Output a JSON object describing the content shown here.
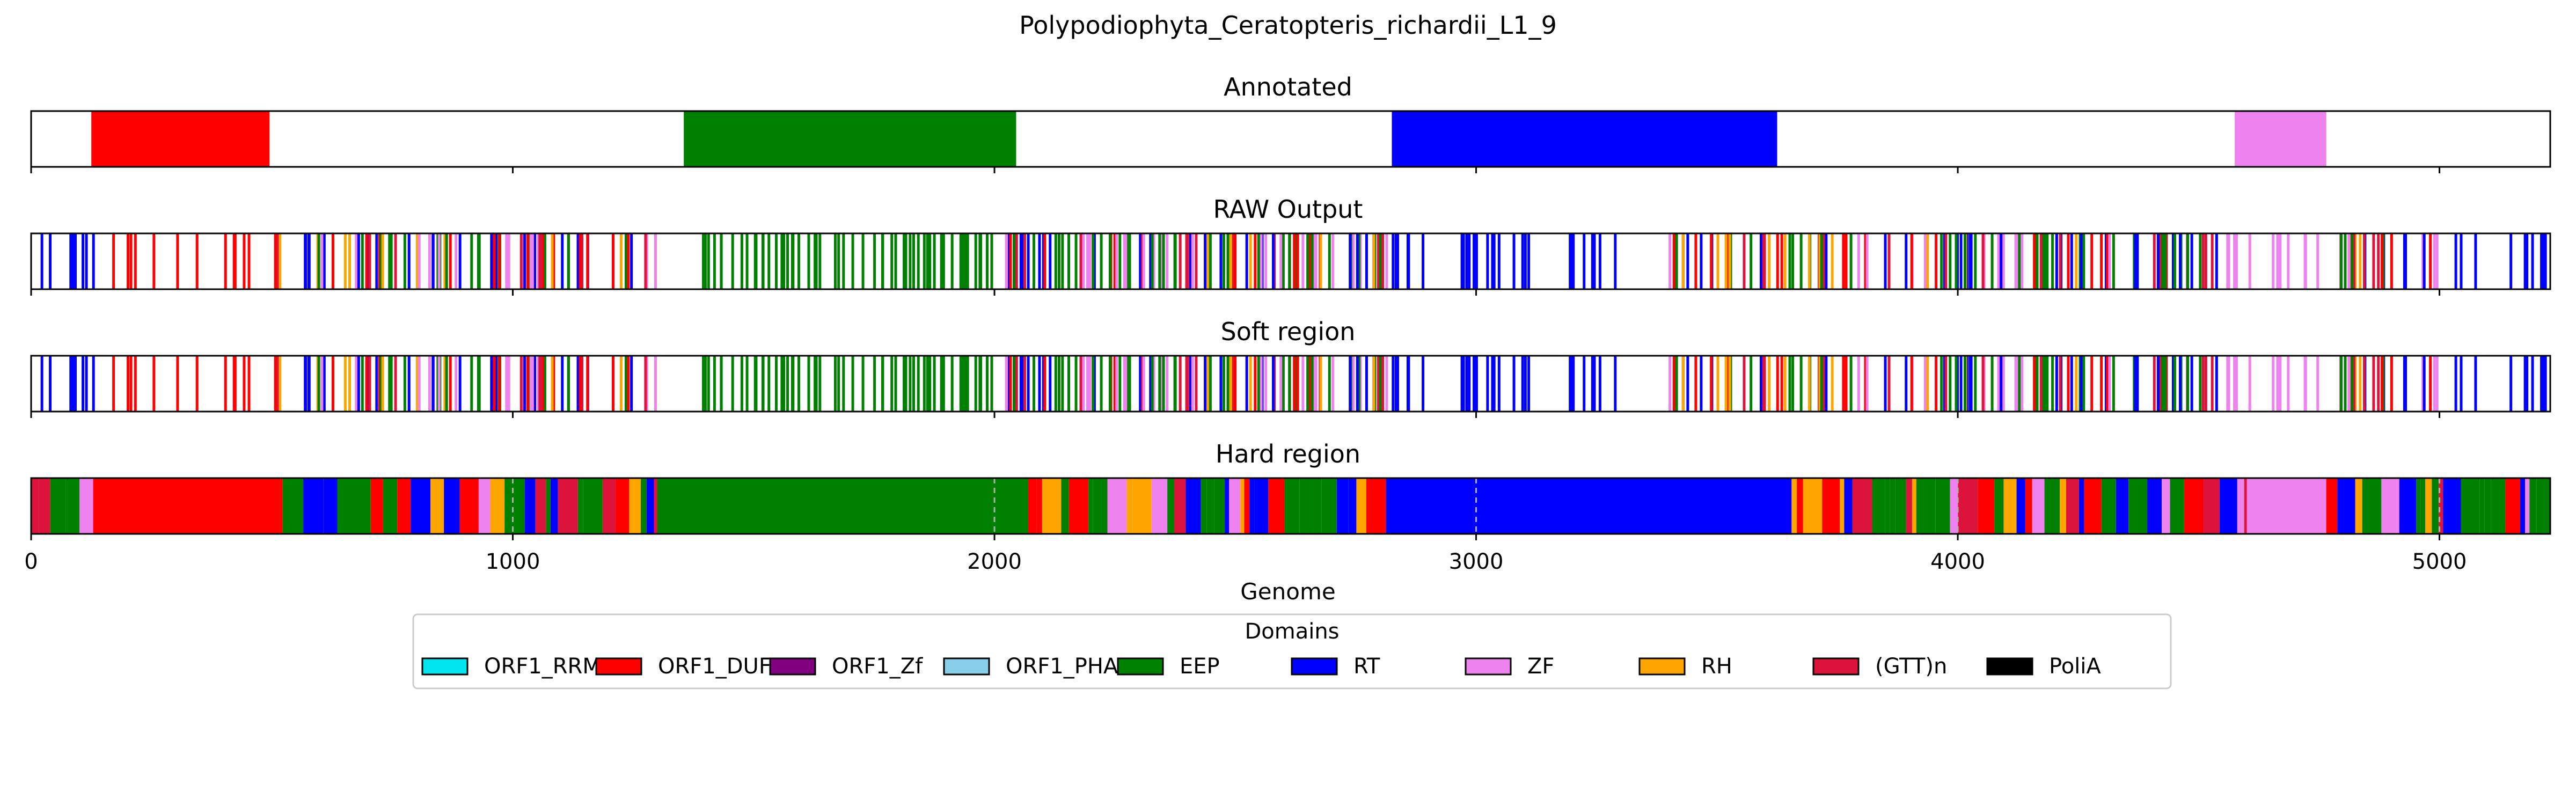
{
  "chart_data": {
    "type": "genome-track",
    "title": "Polypodiophyta_Ceratopteris_richardii_L1_9",
    "xlabel": "Genome",
    "xlim": [
      0,
      5230
    ],
    "x_ticks": [
      0,
      1000,
      2000,
      3000,
      4000,
      5000
    ],
    "grid": "dashed vertical lines on Hard region panel",
    "legend": {
      "title": "Domains",
      "placement": "below",
      "entries": [
        {
          "name": "ORF1_RRM",
          "color": "#00e5ee"
        },
        {
          "name": "ORF1_DUF",
          "color": "#ff0000"
        },
        {
          "name": "ORF1_Zf",
          "color": "#800080"
        },
        {
          "name": "ORF1_PHA",
          "color": "#87ceeb"
        },
        {
          "name": "EEP",
          "color": "#008000"
        },
        {
          "name": "RT",
          "color": "#0000ff"
        },
        {
          "name": "ZF",
          "color": "#ee82ee"
        },
        {
          "name": "RH",
          "color": "#ffa500"
        },
        {
          "name": "(GTT)n",
          "color": "#dc143c"
        },
        {
          "name": "PoliA",
          "color": "#000000"
        }
      ]
    },
    "panels": [
      {
        "title": "Annotated",
        "kind": "segments",
        "segments": [
          {
            "domain": "ORF1_DUF",
            "start": 125,
            "end": 495
          },
          {
            "domain": "EEP",
            "start": 1355,
            "end": 2045
          },
          {
            "domain": "RT",
            "start": 2825,
            "end": 3625
          },
          {
            "domain": "ZF",
            "start": 4575,
            "end": 4765
          }
        ]
      },
      {
        "title": "RAW Output",
        "kind": "lines",
        "regions": [
          {
            "start": 0,
            "end": 130,
            "domain": "RT",
            "count": 10
          },
          {
            "start": 130,
            "end": 500,
            "domain": "ORF1_DUF",
            "count": 12
          },
          {
            "start": 500,
            "end": 1300,
            "domain": "mixed",
            "count": 95
          },
          {
            "start": 1380,
            "end": 2000,
            "domain": "EEP",
            "count": 60
          },
          {
            "start": 2020,
            "end": 2820,
            "domain": "mixed",
            "count": 110
          },
          {
            "start": 2825,
            "end": 3300,
            "domain": "RT",
            "count": 28
          },
          {
            "start": 3400,
            "end": 4550,
            "domain": "mixed",
            "count": 130
          },
          {
            "start": 4560,
            "end": 4780,
            "domain": "ZF",
            "count": 12
          },
          {
            "start": 4780,
            "end": 5000,
            "domain": "mixed",
            "count": 24
          },
          {
            "start": 5000,
            "end": 5230,
            "domain": "RT",
            "count": 10
          }
        ]
      },
      {
        "title": "Soft region",
        "kind": "lines",
        "same_as": "RAW Output"
      },
      {
        "title": "Hard region",
        "kind": "filled",
        "long_segments": [
          {
            "domain": "ORF1_DUF",
            "start": 150,
            "end": 500
          },
          {
            "domain": "EEP",
            "start": 1300,
            "end": 2050
          },
          {
            "domain": "RT",
            "start": 2825,
            "end": 3640
          },
          {
            "domain": "ZF",
            "start": 4600,
            "end": 4765
          }
        ],
        "gridlines": [
          1000,
          2000,
          3000,
          4000,
          5000
        ]
      }
    ]
  }
}
